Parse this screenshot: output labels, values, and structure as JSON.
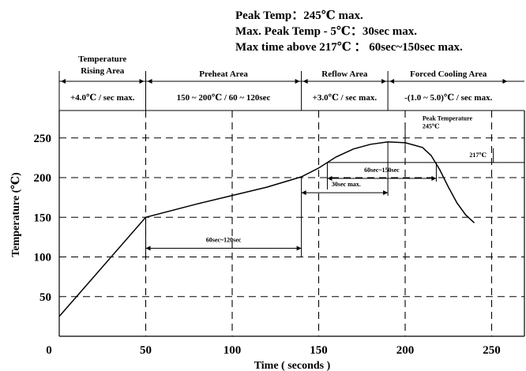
{
  "header": {
    "line1": "Peak Temp：245℃ max.",
    "line2": "Max. Peak Temp - 5℃：30sec max.",
    "line3": "Max time above 217℃ ： 60sec~150sec max."
  },
  "zones": [
    {
      "name": "Temperature Rising Area",
      "name_line1": "Temperature",
      "name_line2": "Rising Area",
      "rate": "+4.0℃ / sec max.",
      "start": 0,
      "end": 50
    },
    {
      "name": "Preheat Area",
      "rate": "150 ~ 200℃ / 60 ~ 120sec",
      "start": 50,
      "end": 140
    },
    {
      "name": "Reflow Area",
      "rate": "+3.0℃ / sec max.",
      "start": 140,
      "end": 190
    },
    {
      "name": "Forced Cooling Area",
      "rate": "-(1.0 ~ 5.0)℃ / sec max.",
      "start": 190,
      "end": 260
    }
  ],
  "annotations": {
    "peak": "Peak Temperature 245℃",
    "peak_line1": "Peak Temperature",
    "peak_line2": "245℃",
    "t217": "217℃",
    "above217": "60sec~150sec",
    "near_peak": "30sec max.",
    "preheat_time": "60sec~120sec"
  },
  "chart_data": {
    "type": "line",
    "title": "",
    "xlabel": "Time ( seconds )",
    "ylabel": "Temperature (℃)",
    "xlim": [
      0,
      260
    ],
    "ylim": [
      0,
      275
    ],
    "xticks": [
      0,
      50,
      100,
      150,
      200,
      250
    ],
    "yticks": [
      50,
      100,
      150,
      200,
      250
    ],
    "grid": true,
    "grid_style": "dashed",
    "series": [
      {
        "x": [
          0,
          50,
          80,
          120,
          140,
          150,
          160,
          170,
          180,
          190,
          200,
          210,
          215,
          220,
          225,
          230,
          235,
          240
        ],
        "y": [
          25,
          150,
          167,
          188,
          201,
          212,
          226,
          236,
          242,
          245,
          244,
          238,
          228,
          210,
          188,
          168,
          153,
          143
        ]
      }
    ]
  }
}
